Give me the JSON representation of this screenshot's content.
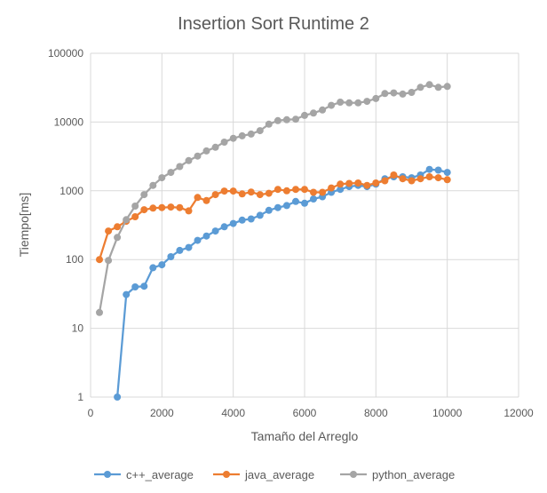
{
  "chart_data": {
    "type": "line",
    "title": "Insertion Sort Runtime 2",
    "xlabel": "Tamaño del Arreglo",
    "ylabel": "Tiempo[ms]",
    "xlim": [
      0,
      12000
    ],
    "ylim": [
      1,
      100000
    ],
    "y_scale": "log",
    "grid": true,
    "legend_position": "bottom",
    "x_ticks": [
      0,
      2000,
      4000,
      6000,
      8000,
      10000,
      12000
    ],
    "x_tick_labels": [
      "0",
      "2000",
      "4000",
      "6000",
      "8000",
      "10000",
      "12000"
    ],
    "y_ticks": [
      1,
      10,
      100,
      1000,
      10000,
      100000
    ],
    "y_tick_labels": [
      "1",
      "10",
      "100",
      "1000",
      "10000",
      "100000"
    ],
    "x": [
      250,
      500,
      750,
      1000,
      1250,
      1500,
      1750,
      2000,
      2250,
      2500,
      2750,
      3000,
      3250,
      3500,
      3750,
      4000,
      4250,
      4500,
      4750,
      5000,
      5250,
      5500,
      5750,
      6000,
      6250,
      6500,
      6750,
      7000,
      7250,
      7500,
      7750,
      8000,
      8250,
      8500,
      8750,
      9000,
      9250,
      9500,
      9750,
      10000
    ],
    "series": [
      {
        "name": "c++_average",
        "color": "#5b9bd5",
        "values": [
          null,
          null,
          1,
          31,
          40,
          41,
          76,
          84,
          110,
          136,
          150,
          190,
          220,
          260,
          300,
          335,
          375,
          390,
          440,
          520,
          570,
          610,
          700,
          660,
          760,
          820,
          950,
          1050,
          1150,
          1200,
          1150,
          1250,
          1500,
          1600,
          1600,
          1550,
          1700,
          2050,
          2000,
          1850
        ]
      },
      {
        "name": "java_average",
        "color": "#ed7d31",
        "values": [
          100,
          260,
          300,
          360,
          420,
          530,
          560,
          570,
          580,
          570,
          510,
          800,
          720,
          880,
          990,
          990,
          900,
          960,
          880,
          920,
          1050,
          1000,
          1050,
          1050,
          950,
          950,
          1100,
          1250,
          1280,
          1300,
          1200,
          1300,
          1400,
          1700,
          1500,
          1400,
          1500,
          1600,
          1550,
          1450
        ]
      },
      {
        "name": "python_average",
        "color": "#a5a5a5",
        "values": [
          17,
          97,
          210,
          380,
          600,
          880,
          1200,
          1550,
          1850,
          2250,
          2750,
          3200,
          3800,
          4300,
          5100,
          5800,
          6300,
          6700,
          7500,
          9300,
          10500,
          10800,
          11000,
          12500,
          13500,
          15000,
          17500,
          19500,
          19000,
          19000,
          20000,
          22000,
          26000,
          26500,
          25500,
          27000,
          32000,
          35000,
          32000,
          33000
        ]
      }
    ]
  }
}
